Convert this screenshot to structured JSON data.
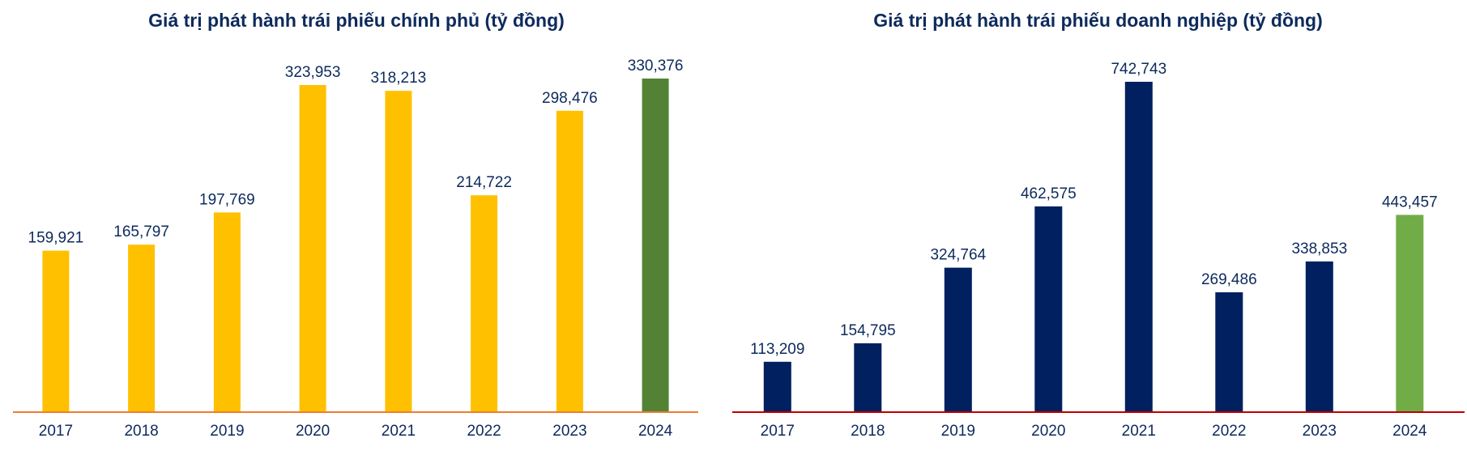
{
  "chart_data": [
    {
      "type": "bar",
      "title": "Giá trị phát hành trái phiếu chính phủ (tỷ đồng)",
      "categories": [
        "2017",
        "2018",
        "2019",
        "2020",
        "2021",
        "2022",
        "2023",
        "2024"
      ],
      "values": [
        159921,
        165797,
        197769,
        323953,
        318213,
        214722,
        298476,
        330376
      ],
      "value_labels": [
        "159,921",
        "165,797",
        "197,769",
        "323,953",
        "318,213",
        "214,722",
        "298,476",
        "330,376"
      ],
      "bar_colors": [
        "#ffc000",
        "#ffc000",
        "#ffc000",
        "#ffc000",
        "#ffc000",
        "#ffc000",
        "#ffc000",
        "#548235"
      ],
      "baseline_color": "#ed7d31",
      "ylim": [
        0,
        330376
      ],
      "grid": false,
      "legend": false
    },
    {
      "type": "bar",
      "title": "Giá trị phát hành trái phiếu doanh nghiệp (tỷ đồng)",
      "categories": [
        "2017",
        "2018",
        "2019",
        "2020",
        "2021",
        "2022",
        "2023",
        "2024"
      ],
      "values": [
        113209,
        154795,
        324764,
        462575,
        742743,
        269486,
        338853,
        443457
      ],
      "value_labels": [
        "113,209",
        "154,795",
        "324,764",
        "462,575",
        "742,743",
        "269,486",
        "338,853",
        "443,457"
      ],
      "bar_colors": [
        "#002060",
        "#002060",
        "#002060",
        "#002060",
        "#002060",
        "#002060",
        "#002060",
        "#70ad47"
      ],
      "baseline_color": "#c00000",
      "ylim": [
        0,
        742743
      ],
      "grid": false,
      "legend": false
    }
  ]
}
